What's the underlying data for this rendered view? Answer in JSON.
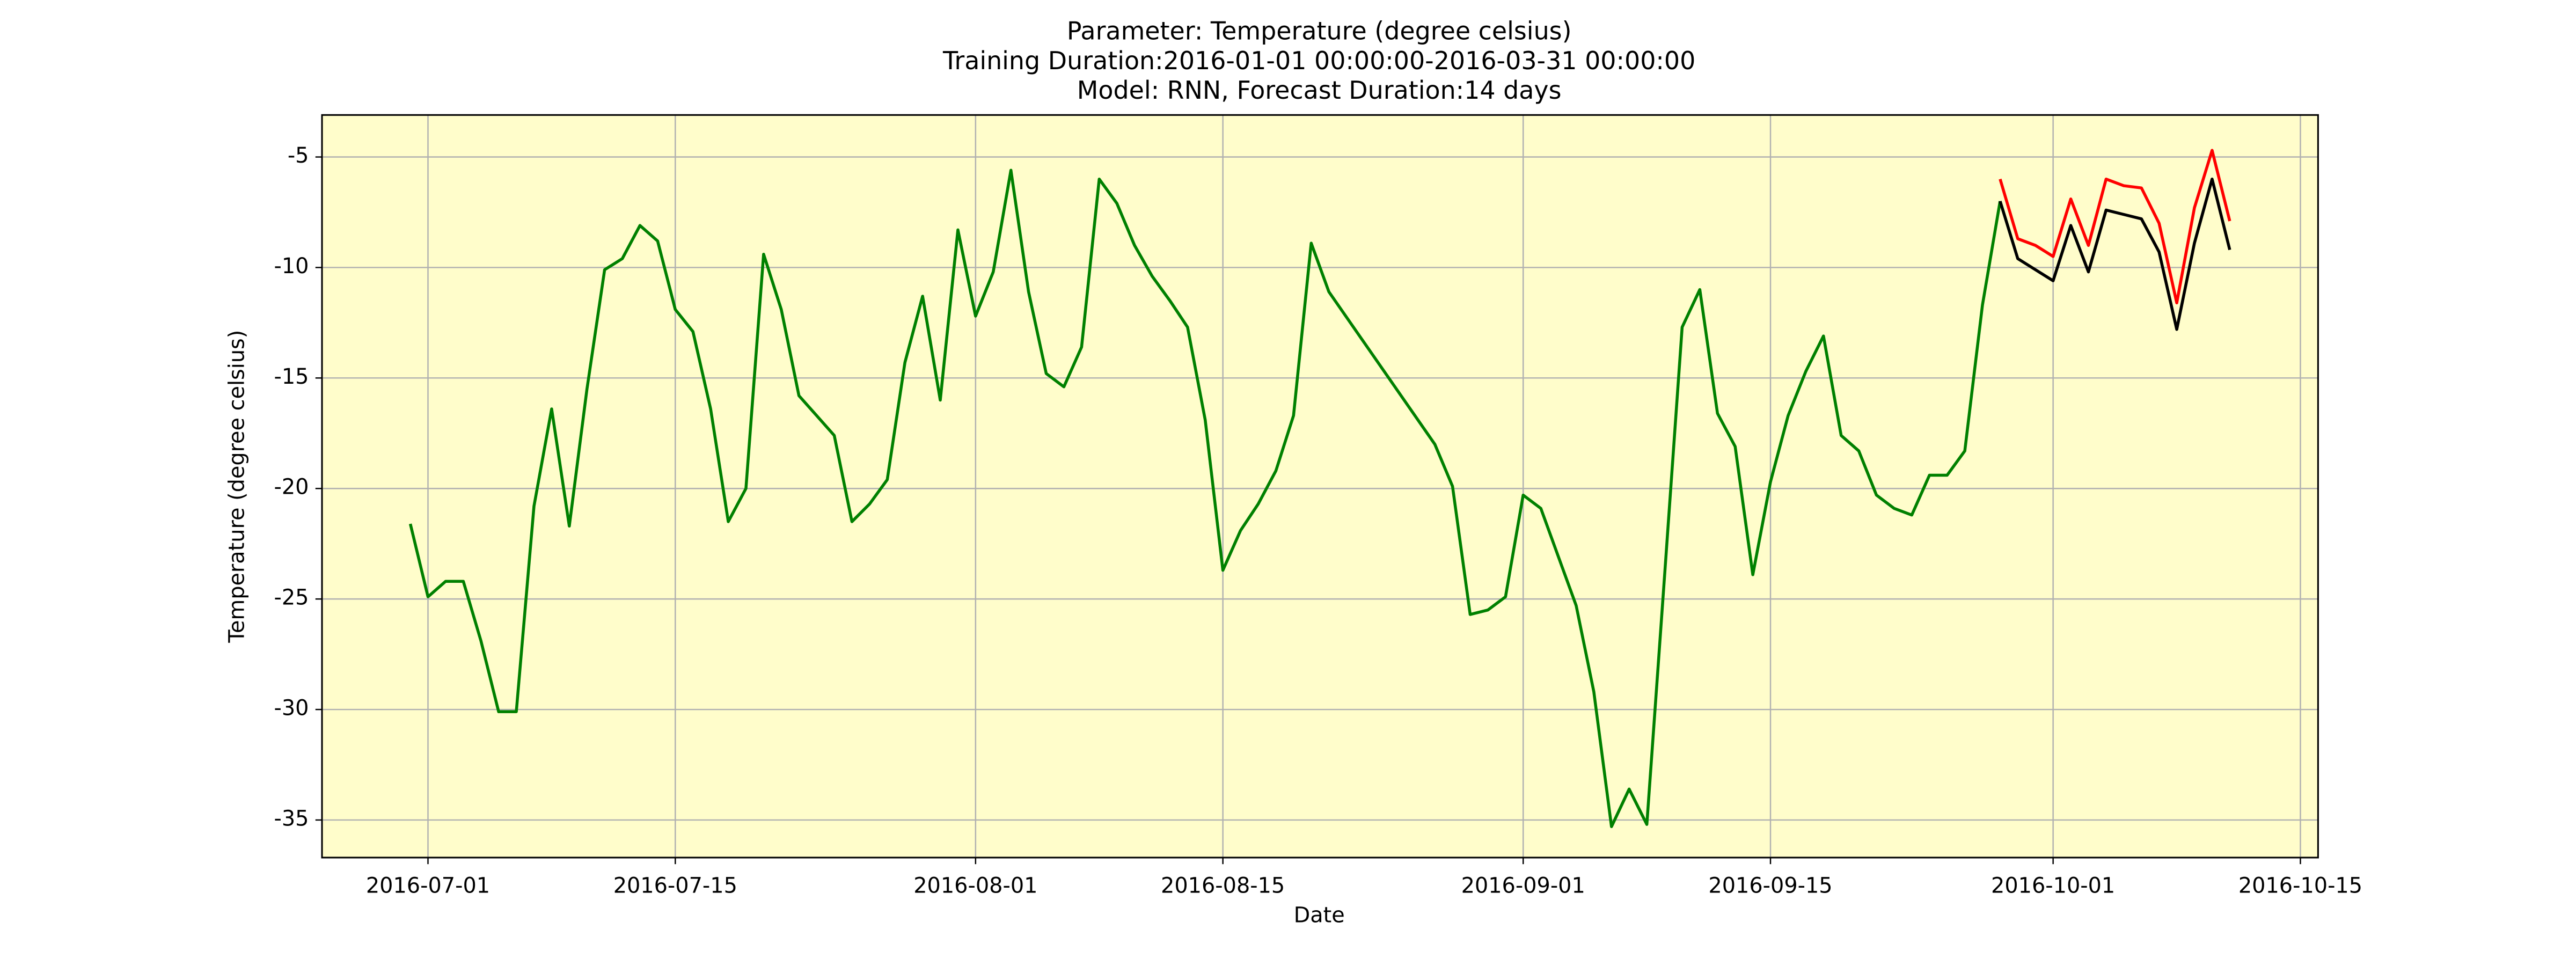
{
  "chart_data": {
    "type": "line",
    "title": [
      "Parameter: Temperature (degree celsius)",
      "Training Duration:2016-01-01 00:00:00-2016-03-31 00:00:00",
      "Model: RNN, Forecast Duration:14 days"
    ],
    "x_label": "Date",
    "y_label": "Temperature (degree celsius)",
    "grid": true,
    "background": "#fffdcb",
    "xlim": [
      "2016-06-25",
      "2016-10-16"
    ],
    "xticks": [
      "2016-07-01",
      "2016-07-15",
      "2016-08-01",
      "2016-08-15",
      "2016-09-01",
      "2016-09-15",
      "2016-10-01",
      "2016-10-15"
    ],
    "ylim": [
      -36.7,
      -3.1
    ],
    "yticks": [
      -35,
      -30,
      -25,
      -20,
      -15,
      -10,
      -5
    ],
    "series": [
      {
        "color": "#008000",
        "x": [
          "2016-06-30",
          "2016-07-01",
          "2016-07-02",
          "2016-07-03",
          "2016-07-04",
          "2016-07-05",
          "2016-07-06",
          "2016-07-07",
          "2016-07-08",
          "2016-07-09",
          "2016-07-10",
          "2016-07-11",
          "2016-07-12",
          "2016-07-13",
          "2016-07-14",
          "2016-07-15",
          "2016-07-16",
          "2016-07-17",
          "2016-07-18",
          "2016-07-19",
          "2016-07-20",
          "2016-07-21",
          "2016-07-22",
          "2016-07-23",
          "2016-07-24",
          "2016-07-25",
          "2016-07-26",
          "2016-07-27",
          "2016-07-28",
          "2016-07-29",
          "2016-07-30",
          "2016-07-31",
          "2016-08-01",
          "2016-08-02",
          "2016-08-03",
          "2016-08-04",
          "2016-08-05",
          "2016-08-06",
          "2016-08-07",
          "2016-08-08",
          "2016-08-09",
          "2016-08-10",
          "2016-08-11",
          "2016-08-12",
          "2016-08-13",
          "2016-08-14",
          "2016-08-15",
          "2016-08-16",
          "2016-08-17",
          "2016-08-18",
          "2016-08-19",
          "2016-08-20",
          "2016-08-21",
          "2016-08-27",
          "2016-08-28",
          "2016-08-29",
          "2016-08-30",
          "2016-08-31",
          "2016-09-01",
          "2016-09-02",
          "2016-09-03",
          "2016-09-04",
          "2016-09-05",
          "2016-09-06",
          "2016-09-07",
          "2016-09-08",
          "2016-09-09",
          "2016-09-10",
          "2016-09-11",
          "2016-09-12",
          "2016-09-13",
          "2016-09-14",
          "2016-09-15",
          "2016-09-16",
          "2016-09-17",
          "2016-09-18",
          "2016-09-19",
          "2016-09-20",
          "2016-09-21",
          "2016-09-22",
          "2016-09-23",
          "2016-09-24",
          "2016-09-25",
          "2016-09-26",
          "2016-09-27",
          "2016-09-28"
        ],
        "values": [
          -21.6,
          -24.9,
          -24.2,
          -24.2,
          -26.9,
          -30.1,
          -30.1,
          -20.8,
          -16.4,
          -21.7,
          -15.5,
          -10.1,
          -9.6,
          -8.1,
          -8.8,
          -11.9,
          -12.9,
          -16.4,
          -21.5,
          -20.0,
          -9.4,
          -11.9,
          -15.8,
          -16.7,
          -17.6,
          -21.5,
          -20.7,
          -19.6,
          -14.3,
          -11.3,
          -16.0,
          -8.3,
          -12.2,
          -10.2,
          -5.6,
          -11.1,
          -14.8,
          -15.4,
          -13.6,
          -6.0,
          -7.1,
          -9.0,
          -10.4,
          -11.5,
          -12.7,
          -16.9,
          -23.7,
          -21.9,
          -20.7,
          -19.2,
          -16.7,
          -8.9,
          -11.1,
          -18.0,
          -19.9,
          -25.7,
          -25.5,
          -24.9,
          -20.3,
          -20.9,
          -23.1,
          -25.3,
          -29.2,
          -35.3,
          -33.6,
          -35.2,
          -24.0,
          -12.7,
          -11.0,
          -16.6,
          -18.1,
          -23.9,
          -19.7,
          -16.7,
          -14.7,
          -13.1,
          -17.6,
          -18.3,
          -20.3,
          -20.9,
          -21.2,
          -19.4,
          -19.4,
          -18.3,
          -11.7,
          -7.0
        ]
      },
      {
        "color": "#ff0000",
        "x": [
          "2016-09-28",
          "2016-09-29",
          "2016-09-30",
          "2016-10-01",
          "2016-10-02",
          "2016-10-03",
          "2016-10-04",
          "2016-10-05",
          "2016-10-06",
          "2016-10-07",
          "2016-10-08",
          "2016-10-09",
          "2016-10-10",
          "2016-10-11"
        ],
        "values": [
          -6.0,
          -8.7,
          -9.0,
          -9.5,
          -6.9,
          -9.0,
          -6.0,
          -6.3,
          -6.4,
          -8.0,
          -11.6,
          -7.3,
          -4.7,
          -7.9
        ]
      },
      {
        "color": "#000000",
        "x": [
          "2016-09-28",
          "2016-09-29",
          "2016-09-30",
          "2016-10-01",
          "2016-10-02",
          "2016-10-03",
          "2016-10-04",
          "2016-10-05",
          "2016-10-06",
          "2016-10-07",
          "2016-10-08",
          "2016-10-09",
          "2016-10-10",
          "2016-10-11"
        ],
        "values": [
          -7.0,
          -9.6,
          -10.1,
          -10.6,
          -8.1,
          -10.2,
          -7.4,
          -7.6,
          -7.8,
          -9.3,
          -12.8,
          -8.9,
          -6.0,
          -9.2
        ]
      }
    ]
  }
}
